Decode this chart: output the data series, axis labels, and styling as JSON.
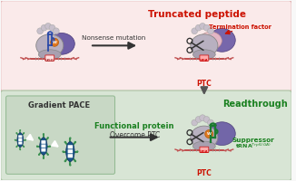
{
  "bg_top": "#faeaea",
  "bg_bottom": "#d8e5d5",
  "bg_bottom_border": "#a8c0a0",
  "title_top": "Truncated peptide",
  "title_top_color": "#cc1100",
  "title_bottom_left": "Gradient PACE",
  "title_bottom_mid1": "Functional protein",
  "title_bottom_mid2": "Overcome PTC",
  "title_bottom_mid_color": "#1a8020",
  "title_bottom_right": "Readthrough",
  "title_bottom_right_color": "#1a8020",
  "label_termination": "Termination factor",
  "label_termination_color": "#cc1100",
  "label_PTC_top": "PTC",
  "label_PTC_color": "#cc1100",
  "label_suppressor": "Suppressor",
  "label_trna": "tRNA",
  "label_suppressor_color": "#1a8020",
  "nonsense_label": "Nonsense mutation",
  "purple_dark": "#6050a0",
  "purple_med": "#8878b8",
  "gray_large": "#b8b0c0",
  "gray_small": "#a8a0b0",
  "gray_bead": "#c8c0cc",
  "pink_term": "#f0c0c8",
  "orange_dot": "#e07820",
  "red_box": "#cc2222",
  "blue_phage": "#1a5588",
  "green_phage": "#3a9050",
  "white": "#ffffff",
  "dark_line": "#333333",
  "mrna_color": "#c05050",
  "scissors_color": "#444444",
  "blue_trna": "#2848a8",
  "green_trna": "#1a7a30",
  "figure_width": 3.26,
  "figure_height": 2.0,
  "dpi": 100
}
